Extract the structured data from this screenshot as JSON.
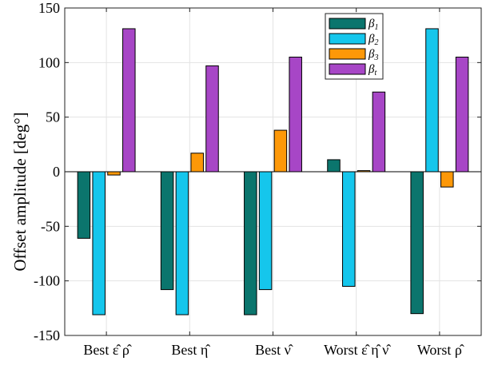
{
  "chart_data": {
    "type": "bar",
    "ylabel": "Offset amplitude [deg°]",
    "ylim": [
      -150,
      150
    ],
    "yticks": [
      -150,
      -100,
      -50,
      0,
      50,
      100,
      150
    ],
    "ytick_labels": [
      "-150",
      "-100",
      "-50",
      "0",
      "50",
      "100",
      "150"
    ],
    "categories": [
      "Best ε̂ ρ̂",
      "Best η̂",
      "Best ν̂",
      "Worst ε̂ η̂ ν̂",
      "Worst ρ̂"
    ],
    "grid": true,
    "legend_position": "top-right",
    "series": [
      {
        "name": "β1",
        "label_base": "β",
        "label_sub": "1",
        "color": "#0b756d",
        "values": [
          -61,
          -108,
          -131,
          11,
          -130
        ]
      },
      {
        "name": "β2",
        "label_base": "β",
        "label_sub": "2",
        "color": "#15c6ec",
        "values": [
          -131,
          -131,
          -108,
          -105,
          131
        ]
      },
      {
        "name": "β3",
        "label_base": "β",
        "label_sub": "3",
        "color": "#fd9808",
        "values": [
          -3,
          17,
          38,
          1,
          -14
        ]
      },
      {
        "name": "βt",
        "label_base": "β",
        "label_sub": "t",
        "color": "#a746c6",
        "values": [
          131,
          97,
          105,
          73,
          105
        ]
      }
    ]
  }
}
